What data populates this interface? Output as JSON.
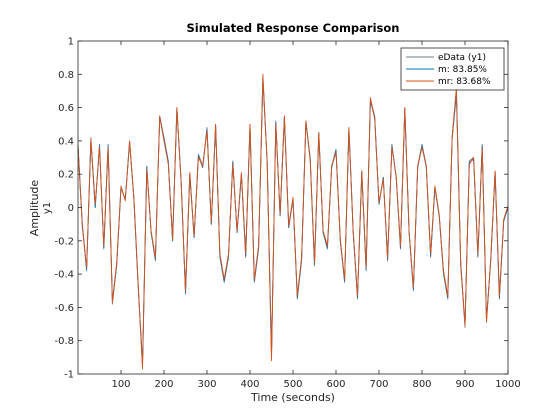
{
  "chart_data": {
    "type": "line",
    "title": "Simulated Response Comparison",
    "xlabel": "Time (seconds)",
    "ylabel": "Amplitude",
    "channel_label": "y1",
    "xlim": [
      0,
      1000
    ],
    "ylim": [
      -1,
      1
    ],
    "xticks": [
      100,
      200,
      300,
      400,
      500,
      600,
      700,
      800,
      900,
      1000
    ],
    "yticks": [
      -1,
      -0.8,
      -0.6,
      -0.4,
      -0.2,
      0,
      0.2,
      0.4,
      0.6,
      0.8,
      1
    ],
    "grid": false,
    "legend_position": "top-right",
    "series": [
      {
        "name": "eData (y1)",
        "color": "#6d7e8c",
        "x": [
          0,
          10,
          20,
          30,
          40,
          50,
          60,
          70,
          80,
          90,
          100,
          110,
          120,
          130,
          140,
          150,
          160,
          170,
          180,
          190,
          200,
          210,
          220,
          230,
          240,
          250,
          260,
          270,
          280,
          290,
          300,
          310,
          320,
          330,
          340,
          350,
          360,
          370,
          380,
          390,
          400,
          410,
          420,
          430,
          440,
          450,
          460,
          470,
          480,
          490,
          500,
          510,
          520,
          530,
          540,
          550,
          560,
          570,
          580,
          590,
          600,
          610,
          620,
          630,
          640,
          650,
          660,
          670,
          680,
          690,
          700,
          710,
          720,
          730,
          740,
          750,
          760,
          770,
          780,
          790,
          800,
          810,
          820,
          830,
          840,
          850,
          860,
          870,
          880,
          890,
          900,
          910,
          920,
          930,
          940,
          950,
          960,
          970,
          980,
          990,
          1000
        ],
        "values": [
          0.38,
          -0.1,
          -0.38,
          0.42,
          0.0,
          0.38,
          -0.25,
          0.38,
          -0.58,
          -0.35,
          0.12,
          0.05,
          0.4,
          0.05,
          -0.48,
          -0.95,
          0.25,
          -0.15,
          -0.32,
          0.55,
          0.42,
          0.28,
          -0.2,
          0.6,
          0.15,
          -0.52,
          0.2,
          -0.18,
          0.32,
          0.25,
          0.48,
          -0.1,
          0.5,
          -0.3,
          -0.45,
          -0.3,
          0.28,
          -0.15,
          0.2,
          -0.3,
          0.5,
          -0.45,
          -0.25,
          0.78,
          0.28,
          -0.9,
          0.52,
          -0.05,
          0.55,
          -0.12,
          0.05,
          -0.55,
          -0.32,
          0.52,
          0.3,
          -0.35,
          0.45,
          -0.15,
          -0.25,
          0.25,
          0.35,
          -0.2,
          -0.45,
          0.48,
          -0.15,
          -0.55,
          0.22,
          -0.38,
          0.65,
          0.55,
          0.02,
          0.18,
          -0.32,
          0.38,
          0.18,
          -0.25,
          0.6,
          -0.15,
          -0.5,
          0.25,
          0.38,
          0.25,
          -0.3,
          0.12,
          -0.05,
          -0.4,
          -0.55,
          0.42,
          0.7,
          -0.35,
          -0.72,
          0.28,
          0.3,
          -0.3,
          0.38,
          -0.68,
          -0.32,
          0.22,
          -0.55,
          -0.08,
          0.0
        ]
      },
      {
        "name": "m: 83.85%",
        "color": "#0072bd",
        "x": [
          0,
          10,
          20,
          30,
          40,
          50,
          60,
          70,
          80,
          90,
          100,
          110,
          120,
          130,
          140,
          150,
          160,
          170,
          180,
          190,
          200,
          210,
          220,
          230,
          240,
          250,
          260,
          270,
          280,
          290,
          300,
          310,
          320,
          330,
          340,
          350,
          360,
          370,
          380,
          390,
          400,
          410,
          420,
          430,
          440,
          450,
          460,
          470,
          480,
          490,
          500,
          510,
          520,
          530,
          540,
          550,
          560,
          570,
          580,
          590,
          600,
          610,
          620,
          630,
          640,
          650,
          660,
          670,
          680,
          690,
          700,
          710,
          720,
          730,
          740,
          750,
          760,
          770,
          780,
          790,
          800,
          810,
          820,
          830,
          840,
          850,
          860,
          870,
          880,
          890,
          900,
          910,
          920,
          930,
          940,
          950,
          960,
          970,
          980,
          990,
          1000
        ],
        "values": [
          0.36,
          -0.1,
          -0.37,
          0.4,
          0.0,
          0.37,
          -0.24,
          0.37,
          -0.56,
          -0.34,
          0.12,
          0.05,
          0.39,
          0.05,
          -0.47,
          -0.93,
          0.24,
          -0.15,
          -0.31,
          0.54,
          0.41,
          0.27,
          -0.2,
          0.59,
          0.15,
          -0.51,
          0.2,
          -0.18,
          0.31,
          0.24,
          0.47,
          -0.1,
          0.49,
          -0.29,
          -0.44,
          -0.29,
          0.27,
          -0.15,
          0.2,
          -0.29,
          0.49,
          -0.44,
          -0.24,
          0.77,
          0.27,
          -0.88,
          0.51,
          -0.05,
          0.54,
          -0.12,
          0.05,
          -0.54,
          -0.31,
          0.51,
          0.29,
          -0.34,
          0.44,
          -0.15,
          -0.24,
          0.24,
          0.34,
          -0.2,
          -0.44,
          0.47,
          -0.15,
          -0.54,
          0.21,
          -0.37,
          0.64,
          0.54,
          0.02,
          0.18,
          -0.31,
          0.37,
          0.18,
          -0.24,
          0.59,
          -0.15,
          -0.49,
          0.24,
          0.37,
          0.24,
          -0.29,
          0.12,
          -0.05,
          -0.39,
          -0.54,
          0.41,
          0.68,
          -0.34,
          -0.7,
          0.27,
          0.29,
          -0.29,
          0.37,
          -0.67,
          -0.31,
          0.21,
          -0.54,
          -0.08,
          0.0
        ]
      },
      {
        "name": "mr: 83.68%",
        "color": "#d95319",
        "x": [
          0,
          10,
          20,
          30,
          40,
          50,
          60,
          70,
          80,
          90,
          100,
          110,
          120,
          130,
          140,
          150,
          160,
          170,
          180,
          190,
          200,
          210,
          220,
          230,
          240,
          250,
          260,
          270,
          280,
          290,
          300,
          310,
          320,
          330,
          340,
          350,
          360,
          370,
          380,
          390,
          400,
          410,
          420,
          430,
          440,
          450,
          460,
          470,
          480,
          490,
          500,
          510,
          520,
          530,
          540,
          550,
          560,
          570,
          580,
          590,
          600,
          610,
          620,
          630,
          640,
          650,
          660,
          670,
          680,
          690,
          700,
          710,
          720,
          730,
          740,
          750,
          760,
          770,
          780,
          790,
          800,
          810,
          820,
          830,
          840,
          850,
          860,
          870,
          880,
          890,
          900,
          910,
          920,
          930,
          940,
          950,
          960,
          970,
          980,
          990,
          1000
        ],
        "values": [
          0.37,
          -0.12,
          -0.36,
          0.41,
          0.02,
          0.36,
          -0.23,
          0.36,
          -0.57,
          -0.33,
          0.13,
          0.04,
          0.4,
          0.06,
          -0.46,
          -0.97,
          0.23,
          -0.14,
          -0.3,
          0.55,
          0.4,
          0.26,
          -0.19,
          0.6,
          0.14,
          -0.5,
          0.21,
          -0.17,
          0.3,
          0.25,
          0.46,
          -0.09,
          0.5,
          -0.28,
          -0.43,
          -0.28,
          0.26,
          -0.14,
          0.21,
          -0.28,
          0.5,
          -0.43,
          -0.23,
          0.8,
          0.26,
          -0.92,
          0.5,
          -0.04,
          0.55,
          -0.11,
          0.06,
          -0.53,
          -0.3,
          0.52,
          0.28,
          -0.33,
          0.45,
          -0.14,
          -0.23,
          0.25,
          0.33,
          -0.19,
          -0.43,
          0.48,
          -0.14,
          -0.53,
          0.22,
          -0.36,
          0.66,
          0.53,
          0.03,
          0.17,
          -0.3,
          0.36,
          0.19,
          -0.23,
          0.6,
          -0.14,
          -0.48,
          0.25,
          0.36,
          0.25,
          -0.28,
          0.13,
          -0.04,
          -0.38,
          -0.53,
          0.42,
          0.72,
          -0.33,
          -0.71,
          0.26,
          0.3,
          -0.28,
          0.36,
          -0.69,
          -0.3,
          0.22,
          -0.53,
          -0.07,
          0.01
        ]
      }
    ]
  }
}
